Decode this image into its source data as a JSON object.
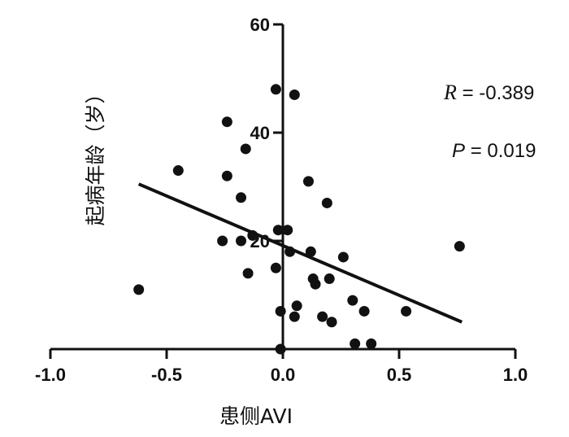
{
  "chart_data": {
    "type": "scatter",
    "xlabel": "患侧AVI",
    "ylabel": "起病年龄（岁）",
    "xlim": [
      -1.0,
      1.0
    ],
    "ylim": [
      0,
      60
    ],
    "x_ticks": [
      -1.0,
      -0.5,
      0.0,
      0.5,
      1.0
    ],
    "x_tick_labels": [
      "-1.0",
      "-0.5",
      "0.0",
      "0.5",
      "1.0"
    ],
    "y_ticks": [
      20,
      40,
      60
    ],
    "y_tick_labels": [
      "20",
      "40",
      "60"
    ],
    "grid": false,
    "points": [
      {
        "x": -0.62,
        "y": 11
      },
      {
        "x": -0.45,
        "y": 33
      },
      {
        "x": -0.26,
        "y": 20
      },
      {
        "x": -0.24,
        "y": 42
      },
      {
        "x": -0.24,
        "y": 32
      },
      {
        "x": -0.18,
        "y": 28
      },
      {
        "x": -0.18,
        "y": 20
      },
      {
        "x": -0.16,
        "y": 37
      },
      {
        "x": -0.15,
        "y": 14
      },
      {
        "x": -0.13,
        "y": 21
      },
      {
        "x": -0.03,
        "y": 48
      },
      {
        "x": -0.03,
        "y": 15
      },
      {
        "x": -0.02,
        "y": 22
      },
      {
        "x": -0.01,
        "y": 7
      },
      {
        "x": -0.01,
        "y": 0
      },
      {
        "x": 0.02,
        "y": 22
      },
      {
        "x": 0.03,
        "y": 18
      },
      {
        "x": 0.05,
        "y": 6
      },
      {
        "x": 0.05,
        "y": 47
      },
      {
        "x": 0.06,
        "y": 8
      },
      {
        "x": 0.11,
        "y": 31
      },
      {
        "x": 0.12,
        "y": 18
      },
      {
        "x": 0.13,
        "y": 13
      },
      {
        "x": 0.14,
        "y": 12
      },
      {
        "x": 0.17,
        "y": 6
      },
      {
        "x": 0.19,
        "y": 27
      },
      {
        "x": 0.2,
        "y": 13
      },
      {
        "x": 0.21,
        "y": 5
      },
      {
        "x": 0.26,
        "y": 17
      },
      {
        "x": 0.3,
        "y": 9
      },
      {
        "x": 0.31,
        "y": 1
      },
      {
        "x": 0.35,
        "y": 7
      },
      {
        "x": 0.38,
        "y": 1
      },
      {
        "x": 0.53,
        "y": 7
      },
      {
        "x": 0.76,
        "y": 19
      }
    ],
    "regression_line": {
      "x": [
        -0.62,
        0.77
      ],
      "y": [
        30.5,
        5
      ]
    },
    "annotations": {
      "r_symbol": "R",
      "r_value": "= -0.389",
      "p_symbol": "P",
      "p_value": "= 0.019"
    },
    "colors": {
      "points": "#111111",
      "line": "#111111",
      "axis": "#111111"
    }
  }
}
